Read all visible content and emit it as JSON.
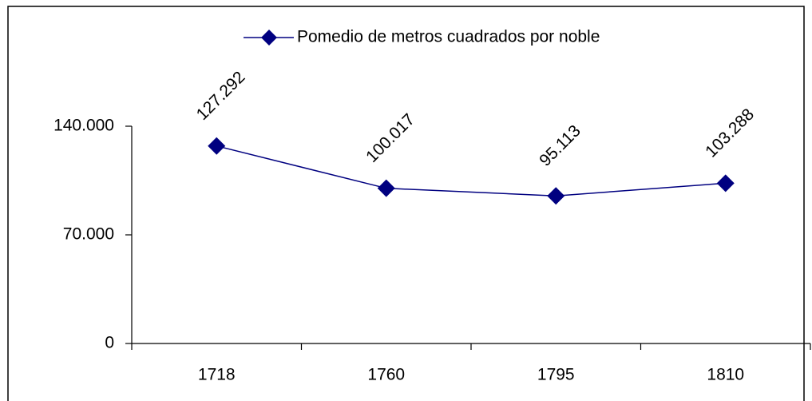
{
  "chart_data": {
    "type": "line",
    "categories": [
      "1718",
      "1760",
      "1795",
      "1810"
    ],
    "series": [
      {
        "name": "Pomedio de metros cuadrados por noble",
        "color": "#000080",
        "values": [
          127292,
          100017,
          95113,
          103288
        ],
        "value_labels": [
          "127.292",
          "100.017",
          "95.113",
          "103.288"
        ]
      }
    ],
    "ylim": [
      0,
      140000
    ],
    "yticks": [
      0,
      {
        "value": 70000,
        "label": "70.000"
      },
      {
        "value": 140000,
        "label": "140.000"
      }
    ],
    "legend": "top"
  }
}
